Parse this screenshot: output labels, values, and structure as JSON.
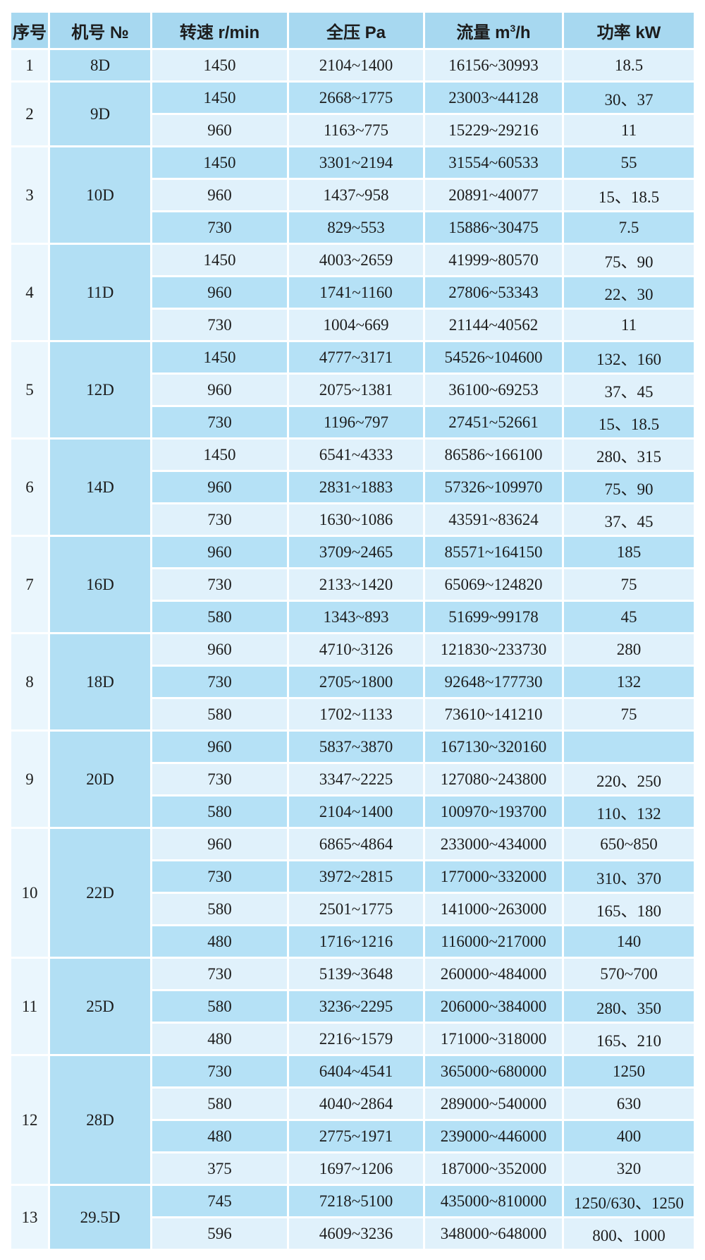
{
  "colors": {
    "header_bg": "#a7d8f0",
    "row_medium_bg": "#b5e1f6",
    "row_light_bg": "#e0f1fb",
    "serial_col_bg": "#eaf6fd",
    "model_col_bg": "#b2dff4",
    "text": "#1c1c1c",
    "page_bg": "#ffffff"
  },
  "header": {
    "serial": "序号",
    "model": "机号 №",
    "speed": "转速 r/min",
    "pressure": "全压 Pa",
    "flow_prefix": "流量 m",
    "flow_sup": "3",
    "flow_suffix": "/h",
    "power": "功率 kW"
  },
  "groups": [
    {
      "no": "1",
      "model": "8D",
      "rows": [
        {
          "speed": "1450",
          "pressure": "2104~1400",
          "flow": "16156~30993",
          "power": "18.5"
        }
      ]
    },
    {
      "no": "2",
      "model": "9D",
      "rows": [
        {
          "speed": "1450",
          "pressure": "2668~1775",
          "flow": "23003~44128",
          "power": "30、37"
        },
        {
          "speed": "960",
          "pressure": "1163~775",
          "flow": "15229~29216",
          "power": "11"
        }
      ]
    },
    {
      "no": "3",
      "model": "10D",
      "rows": [
        {
          "speed": "1450",
          "pressure": "3301~2194",
          "flow": "31554~60533",
          "power": "55"
        },
        {
          "speed": "960",
          "pressure": "1437~958",
          "flow": "20891~40077",
          "power": "15、18.5"
        },
        {
          "speed": "730",
          "pressure": "829~553",
          "flow": "15886~30475",
          "power": "7.5"
        }
      ]
    },
    {
      "no": "4",
      "model": "11D",
      "rows": [
        {
          "speed": "1450",
          "pressure": "4003~2659",
          "flow": "41999~80570",
          "power": "75、90"
        },
        {
          "speed": "960",
          "pressure": "1741~1160",
          "flow": "27806~53343",
          "power": "22、30"
        },
        {
          "speed": "730",
          "pressure": "1004~669",
          "flow": "21144~40562",
          "power": "11"
        }
      ]
    },
    {
      "no": "5",
      "model": "12D",
      "rows": [
        {
          "speed": "1450",
          "pressure": "4777~3171",
          "flow": "54526~104600",
          "power": "132、160"
        },
        {
          "speed": "960",
          "pressure": "2075~1381",
          "flow": "36100~69253",
          "power": "37、45"
        },
        {
          "speed": "730",
          "pressure": "1196~797",
          "flow": "27451~52661",
          "power": "15、18.5"
        }
      ]
    },
    {
      "no": "6",
      "model": "14D",
      "rows": [
        {
          "speed": "1450",
          "pressure": "6541~4333",
          "flow": "86586~166100",
          "power": "280、315"
        },
        {
          "speed": "960",
          "pressure": "2831~1883",
          "flow": "57326~109970",
          "power": "75、90"
        },
        {
          "speed": "730",
          "pressure": "1630~1086",
          "flow": "43591~83624",
          "power": "37、45"
        }
      ]
    },
    {
      "no": "7",
      "model": "16D",
      "rows": [
        {
          "speed": "960",
          "pressure": "3709~2465",
          "flow": "85571~164150",
          "power": "185"
        },
        {
          "speed": "730",
          "pressure": "2133~1420",
          "flow": "65069~124820",
          "power": "75"
        },
        {
          "speed": "580",
          "pressure": "1343~893",
          "flow": "51699~99178",
          "power": "45"
        }
      ]
    },
    {
      "no": "8",
      "model": "18D",
      "rows": [
        {
          "speed": "960",
          "pressure": "4710~3126",
          "flow": "121830~233730",
          "power": "280"
        },
        {
          "speed": "730",
          "pressure": "2705~1800",
          "flow": "92648~177730",
          "power": "132"
        },
        {
          "speed": "580",
          "pressure": "1702~1133",
          "flow": "73610~141210",
          "power": "75"
        }
      ]
    },
    {
      "no": "9",
      "model": "20D",
      "rows": [
        {
          "speed": "960",
          "pressure": "5837~3870",
          "flow": "167130~320160",
          "power": ""
        },
        {
          "speed": "730",
          "pressure": "3347~2225",
          "flow": "127080~243800",
          "power": "220、250"
        },
        {
          "speed": "580",
          "pressure": "2104~1400",
          "flow": "100970~193700",
          "power": "110、132"
        }
      ]
    },
    {
      "no": "10",
      "model": "22D",
      "rows": [
        {
          "speed": "960",
          "pressure": "6865~4864",
          "flow": "233000~434000",
          "power": "650~850"
        },
        {
          "speed": "730",
          "pressure": "3972~2815",
          "flow": "177000~332000",
          "power": "310、370"
        },
        {
          "speed": "580",
          "pressure": "2501~1775",
          "flow": "141000~263000",
          "power": "165、180"
        },
        {
          "speed": "480",
          "pressure": "1716~1216",
          "flow": "116000~217000",
          "power": "140"
        }
      ]
    },
    {
      "no": "11",
      "model": "25D",
      "rows": [
        {
          "speed": "730",
          "pressure": "5139~3648",
          "flow": "260000~484000",
          "power": "570~700"
        },
        {
          "speed": "580",
          "pressure": "3236~2295",
          "flow": "206000~384000",
          "power": "280、350"
        },
        {
          "speed": "480",
          "pressure": "2216~1579",
          "flow": "171000~318000",
          "power": "165、210"
        }
      ]
    },
    {
      "no": "12",
      "model": "28D",
      "rows": [
        {
          "speed": "730",
          "pressure": "6404~4541",
          "flow": "365000~680000",
          "power": "1250"
        },
        {
          "speed": "580",
          "pressure": "4040~2864",
          "flow": "289000~540000",
          "power": "630"
        },
        {
          "speed": "480",
          "pressure": "2775~1971",
          "flow": "239000~446000",
          "power": "400"
        },
        {
          "speed": "375",
          "pressure": "1697~1206",
          "flow": "187000~352000",
          "power": "320"
        }
      ]
    },
    {
      "no": "13",
      "model": "29.5D",
      "rows": [
        {
          "speed": "745",
          "pressure": "7218~5100",
          "flow": "435000~810000",
          "power": "1250/630、1250"
        },
        {
          "speed": "596",
          "pressure": "4609~3236",
          "flow": "348000~648000",
          "power": "800、1000"
        }
      ]
    }
  ]
}
